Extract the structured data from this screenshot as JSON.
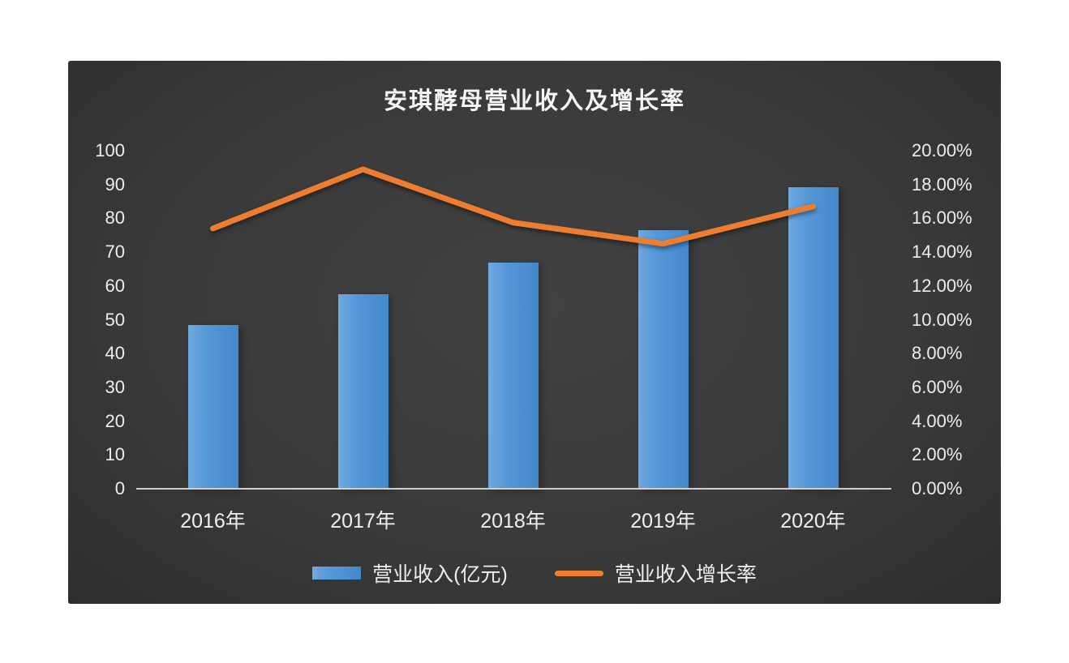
{
  "chart_data": {
    "type": "bar+line",
    "title": "安琪酵母营业收入及增长率",
    "categories": [
      "2016年",
      "2017年",
      "2018年",
      "2019年",
      "2020年"
    ],
    "series": [
      {
        "name": "营业收入(亿元)",
        "type": "bar",
        "axis": "left",
        "values": [
          48.4,
          57.6,
          66.8,
          76.5,
          89.3
        ],
        "color": "#4e96d9"
      },
      {
        "name": "营业收入增长率",
        "type": "line",
        "axis": "right",
        "values": [
          15.4,
          18.9,
          15.75,
          14.5,
          16.7
        ],
        "color": "#ed7d31"
      }
    ],
    "left_axis": {
      "min": 0,
      "max": 100,
      "step": 10,
      "tick_labels": [
        "0",
        "10",
        "20",
        "30",
        "40",
        "50",
        "60",
        "70",
        "80",
        "90",
        "100"
      ]
    },
    "right_axis": {
      "min": 0,
      "max": 20,
      "step": 2,
      "tick_labels": [
        "0.00%",
        "2.00%",
        "4.00%",
        "6.00%",
        "8.00%",
        "10.00%",
        "12.00%",
        "14.00%",
        "16.00%",
        "18.00%",
        "20.00%"
      ]
    },
    "legend": [
      "营业收入(亿元)",
      "营业收入增长率"
    ],
    "colors": {
      "background": "#3a3a3a",
      "bar": "#4e96d9",
      "line": "#ed7d31",
      "text": "#efefef",
      "axis_line": "#cfcfcf"
    },
    "grid": "off",
    "legend_position": "bottom"
  }
}
